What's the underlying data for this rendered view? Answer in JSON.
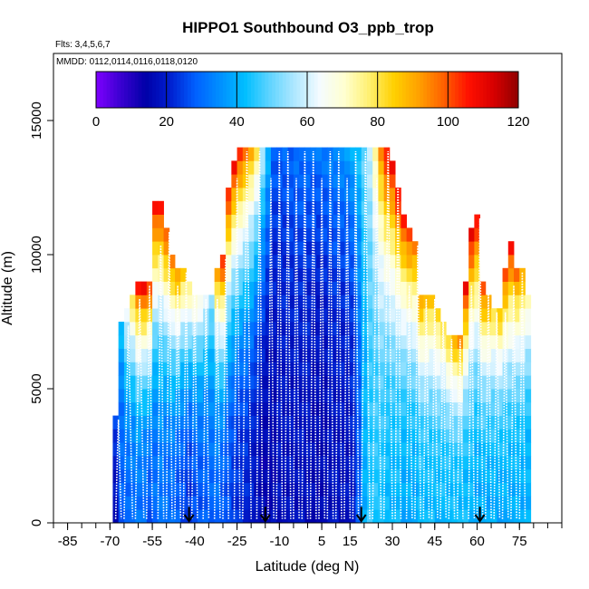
{
  "chart_data": {
    "type": "heatmap",
    "title": "HIPPO1 Southbound O3_ppb_trop",
    "subtitle_flights": "Flts: 3,4,5,6,7",
    "subtitle_dates": "MMDD: 0112,0114,0116,0118,0120",
    "xlabel": "Latitude (deg N)",
    "ylabel": "Altitude (m)",
    "xlim": [
      -90,
      90
    ],
    "ylim": [
      0,
      17500
    ],
    "x_ticks": [
      -85,
      -70,
      -55,
      -40,
      -25,
      -10,
      5,
      15,
      30,
      45,
      60,
      75
    ],
    "x_tick_labels": [
      "-85",
      "-70",
      "-55",
      "-40",
      "-25",
      "-10",
      "5",
      "15",
      "30",
      "45",
      "60",
      "75"
    ],
    "y_ticks": [
      0,
      5000,
      10000,
      15000
    ],
    "y_tick_labels": [
      "0",
      "5000",
      "10000",
      "15000"
    ],
    "colorbar": {
      "min": 0,
      "max": 120,
      "ticks": [
        0,
        20,
        40,
        60,
        80,
        100,
        120
      ],
      "tick_labels": [
        "0",
        "20",
        "40",
        "60",
        "80",
        "100",
        "120"
      ],
      "colors": [
        "#7f00ff",
        "#3a00d0",
        "#0000a8",
        "#0020d0",
        "#0060ff",
        "#0090ff",
        "#00bfff",
        "#60d4ff",
        "#b0e8ff",
        "#f4fbff",
        "#ffffd0",
        "#fff070",
        "#ffd000",
        "#ffa000",
        "#ff6000",
        "#ff1000",
        "#d80000",
        "#8f0000"
      ]
    },
    "arrow_latitudes": [
      -42,
      -15,
      19,
      61
    ],
    "columns": [
      {
        "x": -68,
        "top": 4000,
        "bottom_o3": 18,
        "top_o3": 28
      },
      {
        "x": -66,
        "top": 7500,
        "bottom_o3": 28,
        "top_o3": 45
      },
      {
        "x": -64,
        "top": 8000,
        "bottom_o3": 30,
        "top_o3": 65
      },
      {
        "x": -62,
        "top": 8500,
        "bottom_o3": 30,
        "top_o3": 85
      },
      {
        "x": -60,
        "top": 9000,
        "bottom_o3": 32,
        "top_o3": 110
      },
      {
        "x": -58,
        "top": 9000,
        "bottom_o3": 30,
        "top_o3": 112
      },
      {
        "x": -56,
        "top": 9000,
        "bottom_o3": 28,
        "top_o3": 108
      },
      {
        "x": -54,
        "top": 12000,
        "bottom_o3": 30,
        "top_o3": 112
      },
      {
        "x": -52,
        "top": 12000,
        "bottom_o3": 32,
        "top_o3": 110
      },
      {
        "x": -50,
        "top": 11000,
        "bottom_o3": 30,
        "top_o3": 105
      },
      {
        "x": -48,
        "top": 10000,
        "bottom_o3": 30,
        "top_o3": 100
      },
      {
        "x": -46,
        "top": 9500,
        "bottom_o3": 28,
        "top_o3": 96
      },
      {
        "x": -44,
        "top": 9500,
        "bottom_o3": 26,
        "top_o3": 90
      },
      {
        "x": -42,
        "top": 9000,
        "bottom_o3": 24,
        "top_o3": 80
      },
      {
        "x": -40,
        "top": 8500,
        "bottom_o3": 26,
        "top_o3": 75
      },
      {
        "x": -38,
        "top": 8500,
        "bottom_o3": 28,
        "top_o3": 70
      },
      {
        "x": -36,
        "top": 8500,
        "bottom_o3": 28,
        "top_o3": 65
      },
      {
        "x": -34,
        "top": 8500,
        "bottom_o3": 30,
        "top_o3": 55
      },
      {
        "x": -32,
        "top": 9500,
        "bottom_o3": 30,
        "top_o3": 95
      },
      {
        "x": -30,
        "top": 10000,
        "bottom_o3": 28,
        "top_o3": 110
      },
      {
        "x": -28,
        "top": 12500,
        "bottom_o3": 26,
        "top_o3": 110
      },
      {
        "x": -26,
        "top": 13500,
        "bottom_o3": 24,
        "top_o3": 110
      },
      {
        "x": -24,
        "top": 14000,
        "bottom_o3": 22,
        "top_o3": 108
      },
      {
        "x": -22,
        "top": 14000,
        "bottom_o3": 22,
        "top_o3": 100
      },
      {
        "x": -20,
        "top": 14000,
        "bottom_o3": 20,
        "top_o3": 92
      },
      {
        "x": -18,
        "top": 14000,
        "bottom_o3": 18,
        "top_o3": 80
      },
      {
        "x": -16,
        "top": 14000,
        "bottom_o3": 15,
        "top_o3": 60
      },
      {
        "x": -14,
        "top": 14000,
        "bottom_o3": 15,
        "top_o3": 42
      },
      {
        "x": -12,
        "top": 14000,
        "bottom_o3": 16,
        "top_o3": 30
      },
      {
        "x": -10,
        "top": 14000,
        "bottom_o3": 18,
        "top_o3": 28
      },
      {
        "x": -8,
        "top": 14000,
        "bottom_o3": 18,
        "top_o3": 30
      },
      {
        "x": -6,
        "top": 14000,
        "bottom_o3": 18,
        "top_o3": 30
      },
      {
        "x": -4,
        "top": 14000,
        "bottom_o3": 18,
        "top_o3": 32
      },
      {
        "x": -2,
        "top": 14000,
        "bottom_o3": 18,
        "top_o3": 32
      },
      {
        "x": 0,
        "top": 14000,
        "bottom_o3": 18,
        "top_o3": 32
      },
      {
        "x": 2,
        "top": 14000,
        "bottom_o3": 16,
        "top_o3": 32
      },
      {
        "x": 4,
        "top": 14000,
        "bottom_o3": 16,
        "top_o3": 32
      },
      {
        "x": 6,
        "top": 14000,
        "bottom_o3": 16,
        "top_o3": 34
      },
      {
        "x": 8,
        "top": 14000,
        "bottom_o3": 18,
        "top_o3": 34
      },
      {
        "x": 10,
        "top": 14000,
        "bottom_o3": 18,
        "top_o3": 36
      },
      {
        "x": 12,
        "top": 14000,
        "bottom_o3": 18,
        "top_o3": 36
      },
      {
        "x": 14,
        "top": 14000,
        "bottom_o3": 18,
        "top_o3": 38
      },
      {
        "x": 16,
        "top": 14000,
        "bottom_o3": 20,
        "top_o3": 40
      },
      {
        "x": 18,
        "top": 14000,
        "bottom_o3": 28,
        "top_o3": 45
      },
      {
        "x": 20,
        "top": 14000,
        "bottom_o3": 40,
        "top_o3": 50
      },
      {
        "x": 22,
        "top": 14000,
        "bottom_o3": 45,
        "top_o3": 60
      },
      {
        "x": 24,
        "top": 14000,
        "bottom_o3": 45,
        "top_o3": 75
      },
      {
        "x": 26,
        "top": 14000,
        "bottom_o3": 45,
        "top_o3": 95
      },
      {
        "x": 28,
        "top": 14000,
        "bottom_o3": 42,
        "top_o3": 110
      },
      {
        "x": 30,
        "top": 13500,
        "bottom_o3": 42,
        "top_o3": 110
      },
      {
        "x": 32,
        "top": 12500,
        "bottom_o3": 42,
        "top_o3": 110
      },
      {
        "x": 34,
        "top": 11500,
        "bottom_o3": 40,
        "top_o3": 108
      },
      {
        "x": 36,
        "top": 11000,
        "bottom_o3": 40,
        "top_o3": 105
      },
      {
        "x": 38,
        "top": 10500,
        "bottom_o3": 40,
        "top_o3": 100
      },
      {
        "x": 40,
        "top": 8500,
        "bottom_o3": 42,
        "top_o3": 95
      },
      {
        "x": 42,
        "top": 8500,
        "bottom_o3": 42,
        "top_o3": 92
      },
      {
        "x": 44,
        "top": 8500,
        "bottom_o3": 42,
        "top_o3": 90
      },
      {
        "x": 46,
        "top": 8000,
        "bottom_o3": 42,
        "top_o3": 88
      },
      {
        "x": 48,
        "top": 7500,
        "bottom_o3": 42,
        "top_o3": 85
      },
      {
        "x": 50,
        "top": 7000,
        "bottom_o3": 42,
        "top_o3": 88
      },
      {
        "x": 52,
        "top": 7000,
        "bottom_o3": 42,
        "top_o3": 95
      },
      {
        "x": 54,
        "top": 7000,
        "bottom_o3": 42,
        "top_o3": 100
      },
      {
        "x": 56,
        "top": 9000,
        "bottom_o3": 42,
        "top_o3": 112
      },
      {
        "x": 58,
        "top": 11000,
        "bottom_o3": 42,
        "top_o3": 115
      },
      {
        "x": 60,
        "top": 11500,
        "bottom_o3": 40,
        "top_o3": 112
      },
      {
        "x": 62,
        "top": 9000,
        "bottom_o3": 40,
        "top_o3": 105
      },
      {
        "x": 64,
        "top": 8500,
        "bottom_o3": 40,
        "top_o3": 95
      },
      {
        "x": 66,
        "top": 8000,
        "bottom_o3": 40,
        "top_o3": 85
      },
      {
        "x": 68,
        "top": 8000,
        "bottom_o3": 40,
        "top_o3": 90
      },
      {
        "x": 70,
        "top": 9500,
        "bottom_o3": 40,
        "top_o3": 105
      },
      {
        "x": 72,
        "top": 10500,
        "bottom_o3": 40,
        "top_o3": 112
      },
      {
        "x": 74,
        "top": 9500,
        "bottom_o3": 40,
        "top_o3": 100
      },
      {
        "x": 76,
        "top": 9500,
        "bottom_o3": 40,
        "top_o3": 95
      },
      {
        "x": 78,
        "top": 8500,
        "bottom_o3": 40,
        "top_o3": 75
      }
    ],
    "profiles": [
      [
        -68,
        -66
      ],
      [
        -65,
        -62
      ],
      [
        -61,
        -58
      ],
      [
        -57,
        -55
      ],
      [
        -53,
        -51
      ],
      [
        -50,
        -48
      ],
      [
        -47,
        -45
      ],
      [
        -44,
        -42
      ],
      [
        -41,
        -39
      ],
      [
        -37,
        -35
      ],
      [
        -33,
        -31
      ],
      [
        -30,
        -28
      ],
      [
        -26,
        -24
      ],
      [
        -23,
        -20
      ],
      [
        -18,
        -16
      ],
      [
        -14,
        -12
      ],
      [
        -11,
        -9
      ],
      [
        -8,
        -6
      ],
      [
        -5,
        -3
      ],
      [
        -2,
        0
      ],
      [
        1,
        3
      ],
      [
        4,
        6
      ],
      [
        7,
        9
      ],
      [
        10,
        12
      ],
      [
        13,
        15
      ],
      [
        16,
        18
      ],
      [
        19,
        22
      ],
      [
        23,
        26
      ],
      [
        27,
        30
      ],
      [
        31,
        33
      ],
      [
        35,
        37
      ],
      [
        38,
        40
      ],
      [
        41,
        43
      ],
      [
        44,
        46
      ],
      [
        47,
        49
      ],
      [
        50,
        52
      ],
      [
        53,
        55
      ],
      [
        57,
        59
      ],
      [
        60,
        62
      ],
      [
        63,
        65
      ],
      [
        66,
        68
      ],
      [
        69,
        71
      ],
      [
        72,
        74
      ],
      [
        75,
        77
      ]
    ]
  }
}
